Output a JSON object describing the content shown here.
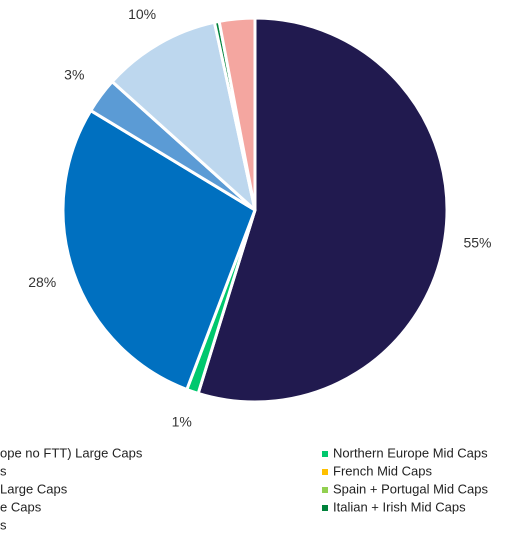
{
  "chart_data": {
    "type": "pie",
    "categories": [
      "ope no FTT) Large Caps",
      "Northern Europe Mid Caps",
      "s",
      "French Mid Caps",
      "Large Caps",
      "Spain + Portugal Mid Caps",
      "e Caps",
      "Italian + Irish Mid Caps",
      "s"
    ],
    "values": [
      55,
      1,
      28,
      0,
      3,
      0,
      10,
      0.4,
      3
    ],
    "value_labels": [
      "55%",
      "1%",
      "28%",
      null,
      "3%",
      null,
      "10%",
      null,
      "3%"
    ],
    "colors": [
      "#211a4f",
      "#00c86e",
      "#0070c0",
      "#ffc000",
      "#5b9bd5",
      "#92d050",
      "#bdd7ee",
      "#00823b",
      "#f4a6a0"
    ],
    "start_angle": 0,
    "direction": "clockwise",
    "legend": "bottom"
  }
}
